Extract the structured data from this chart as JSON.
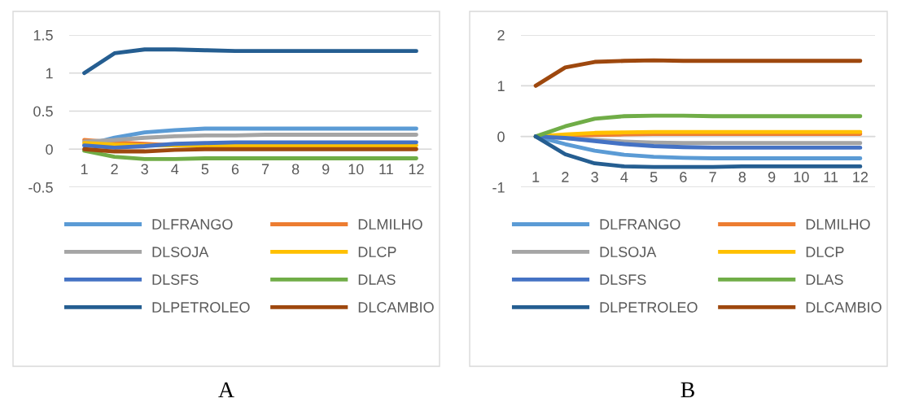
{
  "chart_data": [
    {
      "type": "line",
      "categories": [
        "1",
        "2",
        "3",
        "4",
        "5",
        "6",
        "7",
        "8",
        "9",
        "10",
        "11",
        "12"
      ],
      "ylim": [
        -0.5,
        1.5
      ],
      "yticks": [
        {
          "value": -0.5,
          "label": "-0.5"
        },
        0,
        0.5,
        1,
        1.5
      ],
      "grid": "y",
      "legend": "bottom",
      "annotations": [
        "A"
      ],
      "series": [
        {
          "name": "DLFRANGO",
          "color": "#5b9bd5",
          "values": [
            0.05,
            0.15,
            0.22,
            0.25,
            0.27,
            0.27,
            0.27,
            0.27,
            0.27,
            0.27,
            0.27,
            0.27
          ]
        },
        {
          "name": "DLMILHO",
          "color": "#ed7d31",
          "values": [
            0.12,
            0.09,
            0.07,
            0.05,
            null,
            null,
            null,
            null,
            null,
            null,
            null,
            null
          ]
        },
        {
          "name": "DLSOJA",
          "color": "#a5a5a5",
          "values": [
            0.1,
            0.12,
            0.15,
            0.17,
            0.18,
            0.18,
            0.19,
            0.19,
            0.19,
            0.19,
            0.19,
            0.19
          ]
        },
        {
          "name": "DLCP",
          "color": "#ffc000",
          "values": [
            0.08,
            0.06,
            0.05,
            0.05,
            0.05,
            0.05,
            0.05,
            0.05,
            0.05,
            0.05,
            0.05,
            0.05
          ]
        },
        {
          "name": "DLSFS",
          "color": "#4472c4",
          "values": [
            0.05,
            0.02,
            0.04,
            0.07,
            0.08,
            0.09,
            0.09,
            0.09,
            0.09,
            0.09,
            0.09,
            0.09
          ]
        },
        {
          "name": "DLAS",
          "color": "#70ad47",
          "values": [
            -0.02,
            -0.1,
            -0.13,
            -0.13,
            -0.12,
            -0.12,
            -0.12,
            -0.12,
            -0.12,
            -0.12,
            -0.12,
            -0.12
          ]
        },
        {
          "name": "DLPETROLEO",
          "color": "#255e91",
          "values": [
            1,
            1.26,
            1.31,
            1.31,
            1.3,
            1.29,
            1.29,
            1.29,
            1.29,
            1.29,
            1.29,
            1.29
          ]
        },
        {
          "name": "DLCAMBIO",
          "color": "#9e480e",
          "values": [
            0,
            -0.03,
            -0.03,
            -0.01,
            0,
            0,
            0,
            0,
            0,
            0,
            0,
            0
          ]
        }
      ]
    },
    {
      "type": "line",
      "categories": [
        "1",
        "2",
        "3",
        "4",
        "5",
        "6",
        "7",
        "8",
        "9",
        "10",
        "11",
        "12"
      ],
      "ylim": [
        -1,
        2
      ],
      "yticks": [
        {
          "value": -1,
          "label": "-1"
        },
        0,
        1,
        2
      ],
      "grid": "y",
      "legend": "bottom",
      "annotations": [
        "B"
      ],
      "series": [
        {
          "name": "DLFRANGO",
          "color": "#5b9bd5",
          "values": [
            0,
            -0.15,
            -0.28,
            -0.36,
            -0.4,
            -0.42,
            -0.43,
            -0.43,
            -0.43,
            -0.43,
            -0.43,
            -0.43
          ]
        },
        {
          "name": "DLMILHO",
          "color": "#ed7d31",
          "values": [
            0,
            0.01,
            0.03,
            0.04,
            0.05,
            0.05,
            0.05,
            0.05,
            0.05,
            0.05,
            0.05,
            0.05
          ]
        },
        {
          "name": "DLSOJA",
          "color": "#a5a5a5",
          "values": [
            0,
            -0.03,
            -0.07,
            -0.1,
            -0.12,
            -0.13,
            -0.13,
            -0.13,
            -0.13,
            -0.13,
            -0.13,
            -0.13
          ]
        },
        {
          "name": "DLCP",
          "color": "#ffc000",
          "values": [
            0,
            0.04,
            0.07,
            0.08,
            0.09,
            0.09,
            0.09,
            0.09,
            0.09,
            0.09,
            0.09,
            0.09
          ]
        },
        {
          "name": "DLSFS",
          "color": "#4472c4",
          "values": [
            0,
            -0.03,
            -0.09,
            -0.15,
            -0.19,
            -0.21,
            -0.22,
            -0.22,
            -0.22,
            -0.22,
            -0.22,
            -0.22
          ]
        },
        {
          "name": "DLAS",
          "color": "#70ad47",
          "values": [
            0,
            0.2,
            0.35,
            0.4,
            0.41,
            0.41,
            0.4,
            0.4,
            0.4,
            0.4,
            0.4,
            0.4
          ]
        },
        {
          "name": "DLPETROLEO",
          "color": "#255e91",
          "values": [
            0,
            -0.35,
            -0.53,
            -0.59,
            -0.6,
            -0.6,
            -0.6,
            -0.59,
            -0.59,
            -0.59,
            -0.59,
            -0.59
          ]
        },
        {
          "name": "DLCAMBIO",
          "color": "#9e480e",
          "values": [
            1,
            1.36,
            1.47,
            1.49,
            1.5,
            1.49,
            1.49,
            1.49,
            1.49,
            1.49,
            1.49,
            1.49
          ]
        }
      ]
    }
  ]
}
